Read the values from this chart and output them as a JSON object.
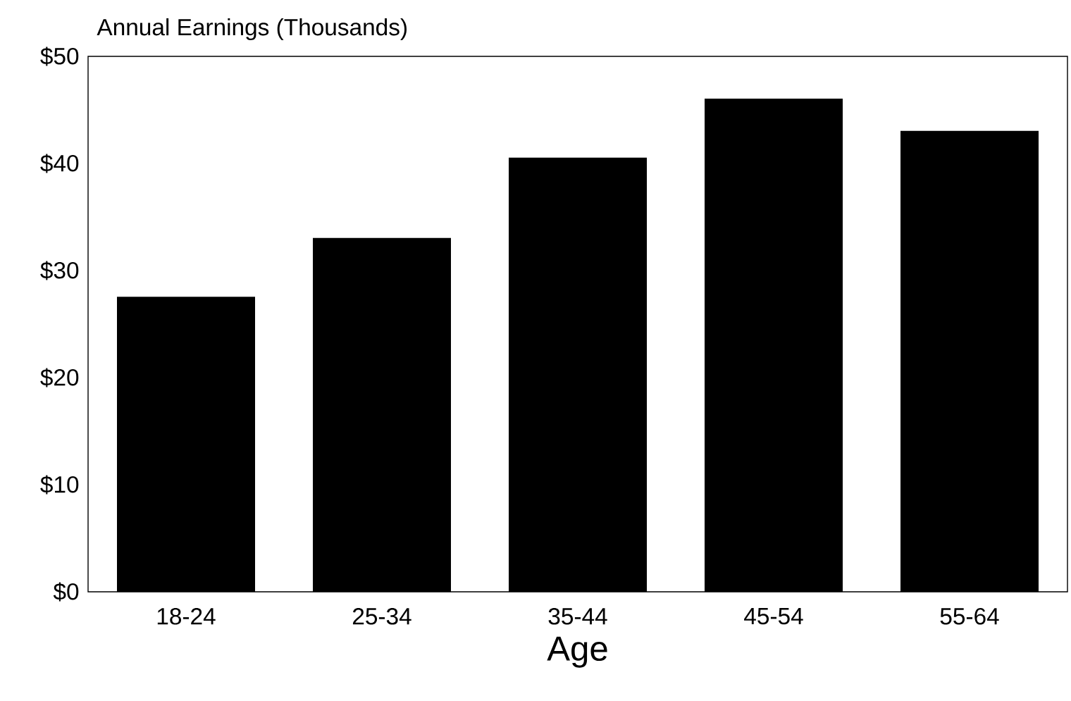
{
  "chart_data": {
    "type": "bar",
    "title": "Annual Earnings (Thousands)",
    "xlabel": "Age",
    "categories": [
      "18-24",
      "25-34",
      "35-44",
      "45-54",
      "55-64"
    ],
    "values": [
      27.5,
      33,
      40.5,
      46,
      43
    ],
    "color": "#000000",
    "ylim": [
      0,
      50
    ],
    "yticks": [
      {
        "value": 0,
        "label": "$0"
      },
      {
        "value": 10,
        "label": "$10"
      },
      {
        "value": 20,
        "label": "$20"
      },
      {
        "value": 30,
        "label": "$30"
      },
      {
        "value": 40,
        "label": "$40"
      },
      {
        "value": 50,
        "label": "$50"
      }
    ]
  }
}
